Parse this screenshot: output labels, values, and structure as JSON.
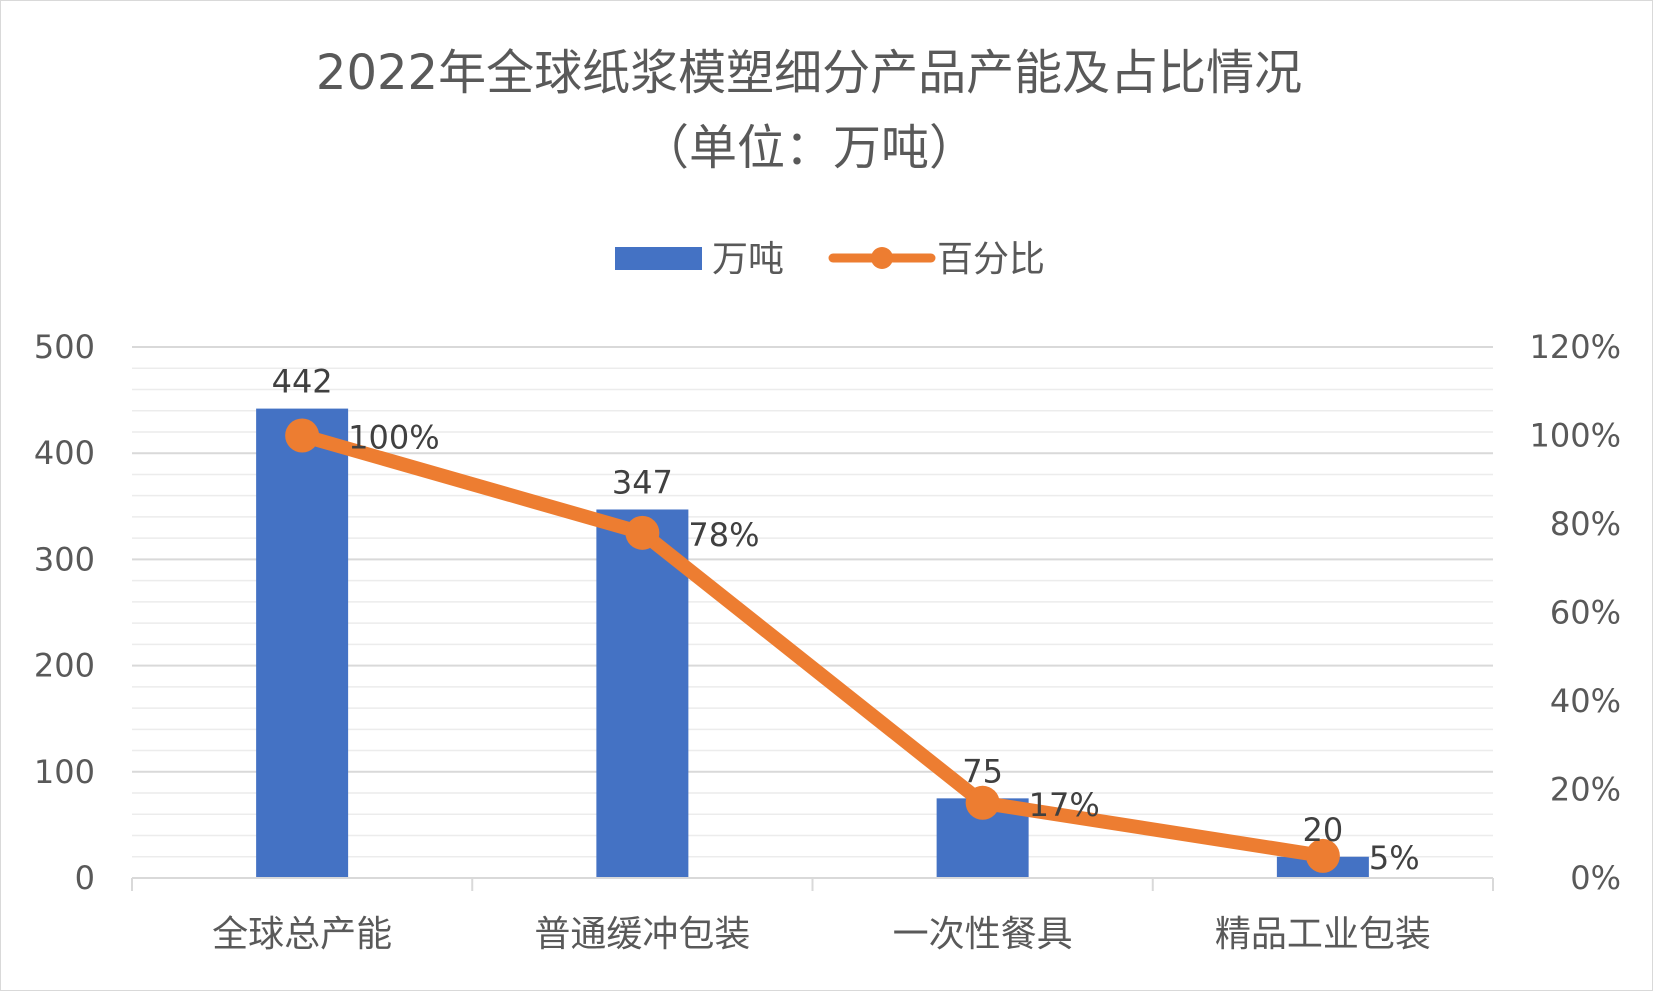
{
  "chart_data": {
    "type": "bar",
    "title": "2022年全球纸浆模塑细分产品产能及占比情况",
    "subtitle": "（单位：万吨）",
    "categories": [
      "全球总产能",
      "普通缓冲包装",
      "一次性餐具",
      "精品工业包装"
    ],
    "series": [
      {
        "name": "万吨",
        "type": "bar",
        "axis": "left",
        "color": "#4472C4",
        "values": [
          442,
          347,
          75,
          20
        ],
        "labels": [
          "442",
          "347",
          "75",
          "20"
        ]
      },
      {
        "name": "百分比",
        "type": "line",
        "axis": "right",
        "color": "#ED7D31",
        "values": [
          100,
          78,
          17,
          5
        ],
        "labels": [
          "100%",
          "78%",
          "17%",
          "5%"
        ]
      }
    ],
    "y_left": {
      "min": 0,
      "max": 500,
      "step": 100,
      "ticks": [
        "0",
        "100",
        "200",
        "300",
        "400",
        "500"
      ]
    },
    "y_right": {
      "min": 0,
      "max": 120,
      "step": 20,
      "ticks": [
        "0%",
        "20%",
        "40%",
        "60%",
        "80%",
        "100%",
        "120%"
      ]
    },
    "grid": true,
    "legend": "top-center"
  }
}
